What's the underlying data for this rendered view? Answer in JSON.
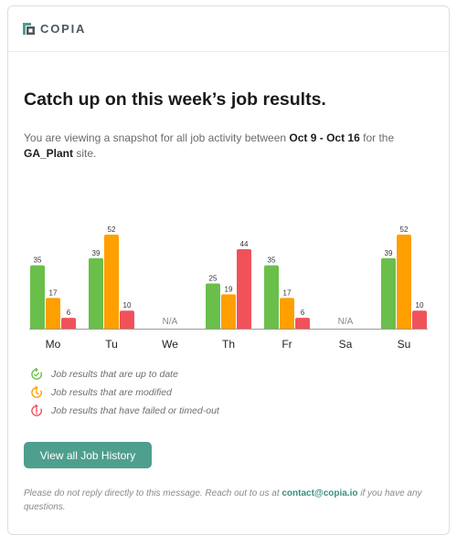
{
  "brand": {
    "name": "COPIA",
    "accent": "#4e9f8d"
  },
  "headline": "Catch up on this week’s job results.",
  "intro": {
    "prefix": "You are viewing a snapshot for all job activity between ",
    "date_range": "Oct 9 - Oct 16",
    "middle": " for the ",
    "site": "GA_Plant",
    "suffix": " site."
  },
  "chart_data": {
    "type": "bar",
    "categories": [
      "Mo",
      "Tu",
      "We",
      "Th",
      "Fr",
      "Sa",
      "Su"
    ],
    "series": [
      {
        "key": "up_to_date",
        "color": "#6abf4b",
        "values": [
          35,
          39,
          null,
          25,
          35,
          null,
          39
        ]
      },
      {
        "key": "modified",
        "color": "#ff9f00",
        "values": [
          17,
          52,
          null,
          19,
          17,
          null,
          52
        ]
      },
      {
        "key": "failed",
        "color": "#f1525a",
        "values": [
          6,
          10,
          null,
          44,
          6,
          null,
          10
        ]
      }
    ],
    "missing_label": "N/A",
    "ylim": [
      0,
      52
    ],
    "grid": false
  },
  "legend": [
    {
      "icon": "check-circle-icon",
      "color": "#6abf4b",
      "label": "Job results that are up to date"
    },
    {
      "icon": "edit-circle-icon",
      "color": "#ff9f00",
      "label": "Job results that are modified"
    },
    {
      "icon": "error-circle-icon",
      "color": "#f1525a",
      "label": "Job results that have failed or timed-out"
    }
  ],
  "cta": {
    "label": "View all Job History"
  },
  "footer": {
    "prefix": "Please do not reply directly to this message. Reach out to us at ",
    "email": "contact@copia.io",
    "suffix": " if you have any questions."
  }
}
